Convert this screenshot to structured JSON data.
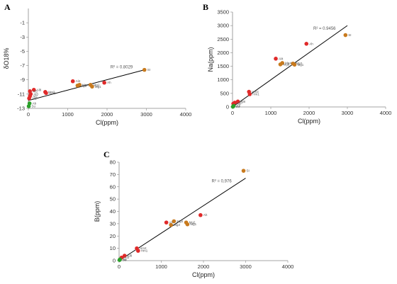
{
  "chart_data": [
    {
      "type": "scatter",
      "panel": "A",
      "xlabel": "Cl(ppm)",
      "ylabel": "δO18%",
      "xlim": [
        0,
        4000
      ],
      "ylim": [
        -13,
        1
      ],
      "xticks": [
        0,
        1000,
        2000,
        3000,
        4000
      ],
      "yticks": [
        -1,
        -3,
        -5,
        -7,
        -9,
        -11,
        -13
      ],
      "grid": false,
      "trendline": {
        "x": [
          0,
          2950
        ],
        "y": [
          -11.9,
          -7.6
        ]
      },
      "r2_label": "R² = 0.8029",
      "points": [
        {
          "label": "SI",
          "x": 2950,
          "y": -7.6,
          "color": "#c87a1e"
        },
        {
          "label": "Ah",
          "x": 1930,
          "y": -9.4,
          "color": "#e02a2a"
        },
        {
          "label": "Mg2",
          "x": 1580,
          "y": -9.7,
          "color": "#c87a1e"
        },
        {
          "label": "Mg1",
          "x": 1620,
          "y": -9.95,
          "color": "#c87a1e"
        },
        {
          "label": "Mg3",
          "x": 1250,
          "y": -9.8,
          "color": "#c87a1e"
        },
        {
          "label": "Mg4",
          "x": 1300,
          "y": -9.7,
          "color": "#c87a1e"
        },
        {
          "label": "Al4",
          "x": 1130,
          "y": -9.2,
          "color": "#e02a2a"
        },
        {
          "label": "Hm2",
          "x": 430,
          "y": -10.7,
          "color": "#e02a2a"
        },
        {
          "label": "Hm1",
          "x": 450,
          "y": -10.85,
          "color": "#e02a2a"
        },
        {
          "label": "Al8",
          "x": 140,
          "y": -10.4,
          "color": "#e02a2a"
        },
        {
          "label": "Al5",
          "x": 40,
          "y": -10.6,
          "color": "#e02a2a"
        },
        {
          "label": "Al3",
          "x": 60,
          "y": -11.0,
          "color": "#e02a2a"
        },
        {
          "label": "Al2",
          "x": 40,
          "y": -11.3,
          "color": "#e02a2a"
        },
        {
          "label": "Al1",
          "x": 20,
          "y": -11.6,
          "color": "#e02a2a"
        },
        {
          "label": "Ab",
          "x": 30,
          "y": -12.3,
          "color": "#2aa02a"
        },
        {
          "label": "Su",
          "x": 10,
          "y": -12.7,
          "color": "#2aa02a"
        }
      ]
    },
    {
      "type": "scatter",
      "panel": "B",
      "xlabel": "Cl(ppm)",
      "ylabel": "Na(ppm)",
      "xlim": [
        0,
        4000
      ],
      "ylim": [
        0,
        3500
      ],
      "xticks": [
        0,
        1000,
        2000,
        3000,
        4000
      ],
      "yticks": [
        0,
        500,
        1000,
        1500,
        2000,
        2500,
        3000,
        3500
      ],
      "grid": false,
      "trendline": {
        "x": [
          0,
          3000
        ],
        "y": [
          0,
          3000
        ]
      },
      "r2_label": "R² = 0.9456",
      "points": [
        {
          "label": "SI",
          "x": 2950,
          "y": 2650,
          "color": "#c87a1e"
        },
        {
          "label": "Ah",
          "x": 1930,
          "y": 2330,
          "color": "#e02a2a"
        },
        {
          "label": "Al4",
          "x": 1130,
          "y": 1780,
          "color": "#e02a2a"
        },
        {
          "label": "Mg4",
          "x": 1300,
          "y": 1620,
          "color": "#c87a1e"
        },
        {
          "label": "Mg3",
          "x": 1250,
          "y": 1570,
          "color": "#c87a1e"
        },
        {
          "label": "Mg2",
          "x": 1580,
          "y": 1600,
          "color": "#c87a1e"
        },
        {
          "label": "Mg1",
          "x": 1620,
          "y": 1560,
          "color": "#c87a1e"
        },
        {
          "label": "Hm2",
          "x": 430,
          "y": 560,
          "color": "#e02a2a"
        },
        {
          "label": "Hm1",
          "x": 450,
          "y": 470,
          "color": "#e02a2a"
        },
        {
          "label": "Al8",
          "x": 140,
          "y": 200,
          "color": "#e02a2a"
        },
        {
          "label": "Al3",
          "x": 60,
          "y": 160,
          "color": "#e02a2a"
        },
        {
          "label": "Al1",
          "x": 20,
          "y": 120,
          "color": "#e02a2a"
        },
        {
          "label": "Ab",
          "x": 30,
          "y": 40,
          "color": "#2aa02a"
        },
        {
          "label": "Su",
          "x": 10,
          "y": 10,
          "color": "#2aa02a"
        }
      ]
    },
    {
      "type": "scatter",
      "panel": "C",
      "xlabel": "Cl(ppm)",
      "ylabel": "B(ppm)",
      "xlim": [
        0,
        4000
      ],
      "ylim": [
        0,
        80
      ],
      "xticks": [
        0,
        1000,
        2000,
        3000,
        4000
      ],
      "yticks": [
        0,
        10,
        20,
        30,
        40,
        50,
        60,
        70,
        80
      ],
      "grid": false,
      "trendline": {
        "x": [
          0,
          3000
        ],
        "y": [
          0,
          67
        ]
      },
      "r2_label": "R² = 0,976",
      "points": [
        {
          "label": "SI",
          "x": 2950,
          "y": 73,
          "color": "#c87a1e"
        },
        {
          "label": "Ah",
          "x": 1930,
          "y": 37,
          "color": "#e02a2a"
        },
        {
          "label": "Al4",
          "x": 1120,
          "y": 31,
          "color": "#e02a2a"
        },
        {
          "label": "Mg4",
          "x": 1300,
          "y": 32,
          "color": "#c87a1e"
        },
        {
          "label": "Mg3",
          "x": 1230,
          "y": 29,
          "color": "#c87a1e"
        },
        {
          "label": "Mg2",
          "x": 1590,
          "y": 31,
          "color": "#c87a1e"
        },
        {
          "label": "Mg1",
          "x": 1620,
          "y": 29.5,
          "color": "#c87a1e"
        },
        {
          "label": "Hm2",
          "x": 420,
          "y": 10,
          "color": "#e02a2a"
        },
        {
          "label": "Hm1",
          "x": 450,
          "y": 8,
          "color": "#e02a2a"
        },
        {
          "label": "Al8",
          "x": 130,
          "y": 4,
          "color": "#e02a2a"
        },
        {
          "label": "Al3",
          "x": 60,
          "y": 2.5,
          "color": "#e02a2a"
        },
        {
          "label": "Ab",
          "x": 20,
          "y": 1,
          "color": "#2aa02a"
        },
        {
          "label": "Su",
          "x": 10,
          "y": 0.5,
          "color": "#2aa02a"
        }
      ]
    }
  ]
}
